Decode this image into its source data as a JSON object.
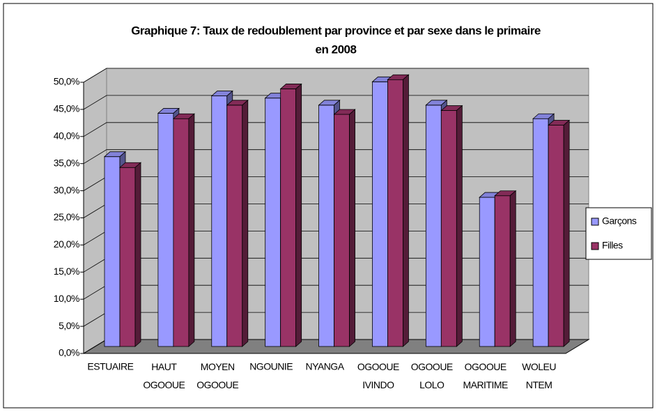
{
  "chart_data": {
    "type": "bar",
    "title": "Graphique 7: Taux de redoublement par province et par sexe dans le primaire",
    "subtitle": "en 2008",
    "categories": [
      "ESTUAIRE",
      "HAUT OGOOUE",
      "MOYEN OGOOUE",
      "NGOUNIE",
      "NYANGA",
      "OGOOUE IVINDO",
      "OGOOUE LOLO",
      "OGOOUE MARITIME",
      "WOLEU NTEM"
    ],
    "series": [
      {
        "name": "Garçons",
        "color": "#9999ff",
        "values": [
          35.0,
          43.0,
          46.2,
          45.8,
          44.5,
          48.8,
          44.5,
          27.5,
          42.0
        ]
      },
      {
        "name": "Filles",
        "color": "#993366",
        "values": [
          33.0,
          42.0,
          44.5,
          47.5,
          42.8,
          49.2,
          43.5,
          27.8,
          40.8
        ]
      }
    ],
    "ylim": [
      0,
      50
    ],
    "yticks": [
      {
        "value": 0,
        "label": "0,0%"
      },
      {
        "value": 5,
        "label": "5,0%"
      },
      {
        "value": 10,
        "label": "10,0%"
      },
      {
        "value": 15,
        "label": "15,0%"
      },
      {
        "value": 20,
        "label": "20,0%"
      },
      {
        "value": 25,
        "label": "25,0%"
      },
      {
        "value": 30,
        "label": "30,0%"
      },
      {
        "value": 35,
        "label": "35,0%"
      },
      {
        "value": 40,
        "label": "40,0%"
      },
      {
        "value": 45,
        "label": "45,0%"
      },
      {
        "value": 50,
        "label": "50,0%"
      }
    ],
    "grid": true,
    "legend": "right"
  }
}
